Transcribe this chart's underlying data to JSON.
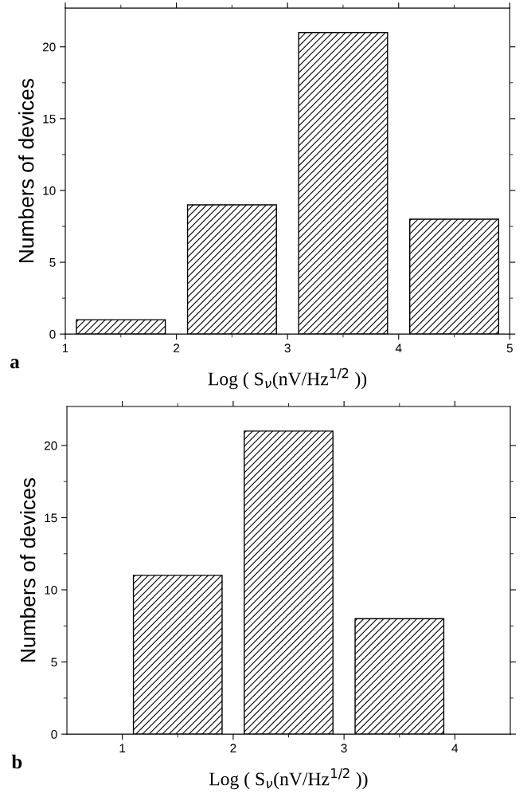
{
  "chart_data": [
    {
      "type": "bar",
      "x": [
        1.5,
        2.5,
        3.5,
        4.5
      ],
      "values": [
        1,
        9,
        21,
        8
      ],
      "color": "#000000",
      "xlabel": "Log ( S$_{ν}$(nV/Hz$^{1/2}$ ))",
      "ylabel": "Numbers of devices",
      "xlim": [
        1,
        5
      ],
      "xticks": [
        1,
        2,
        3,
        4,
        5
      ],
      "ylim": [
        0,
        22.7
      ],
      "yticks": [
        0,
        5,
        10,
        15,
        20
      ],
      "grid": false,
      "annotations": [
        "a"
      ]
    },
    {
      "type": "bar",
      "x": [
        1.5,
        2.5,
        3.5
      ],
      "values": [
        11,
        21,
        8
      ],
      "color": "#000000",
      "xlabel": "Log ( S$_{ν}$(nV/Hz$^{1/2}$ ))",
      "ylabel": "Numbers of devices",
      "xlim": [
        0.5,
        4.5
      ],
      "xticks": [
        1,
        2,
        3,
        4
      ],
      "ylim": [
        0,
        22.7
      ],
      "yticks": [
        0,
        5,
        10,
        15,
        20
      ],
      "grid": false,
      "annotations": [
        "b"
      ]
    }
  ]
}
